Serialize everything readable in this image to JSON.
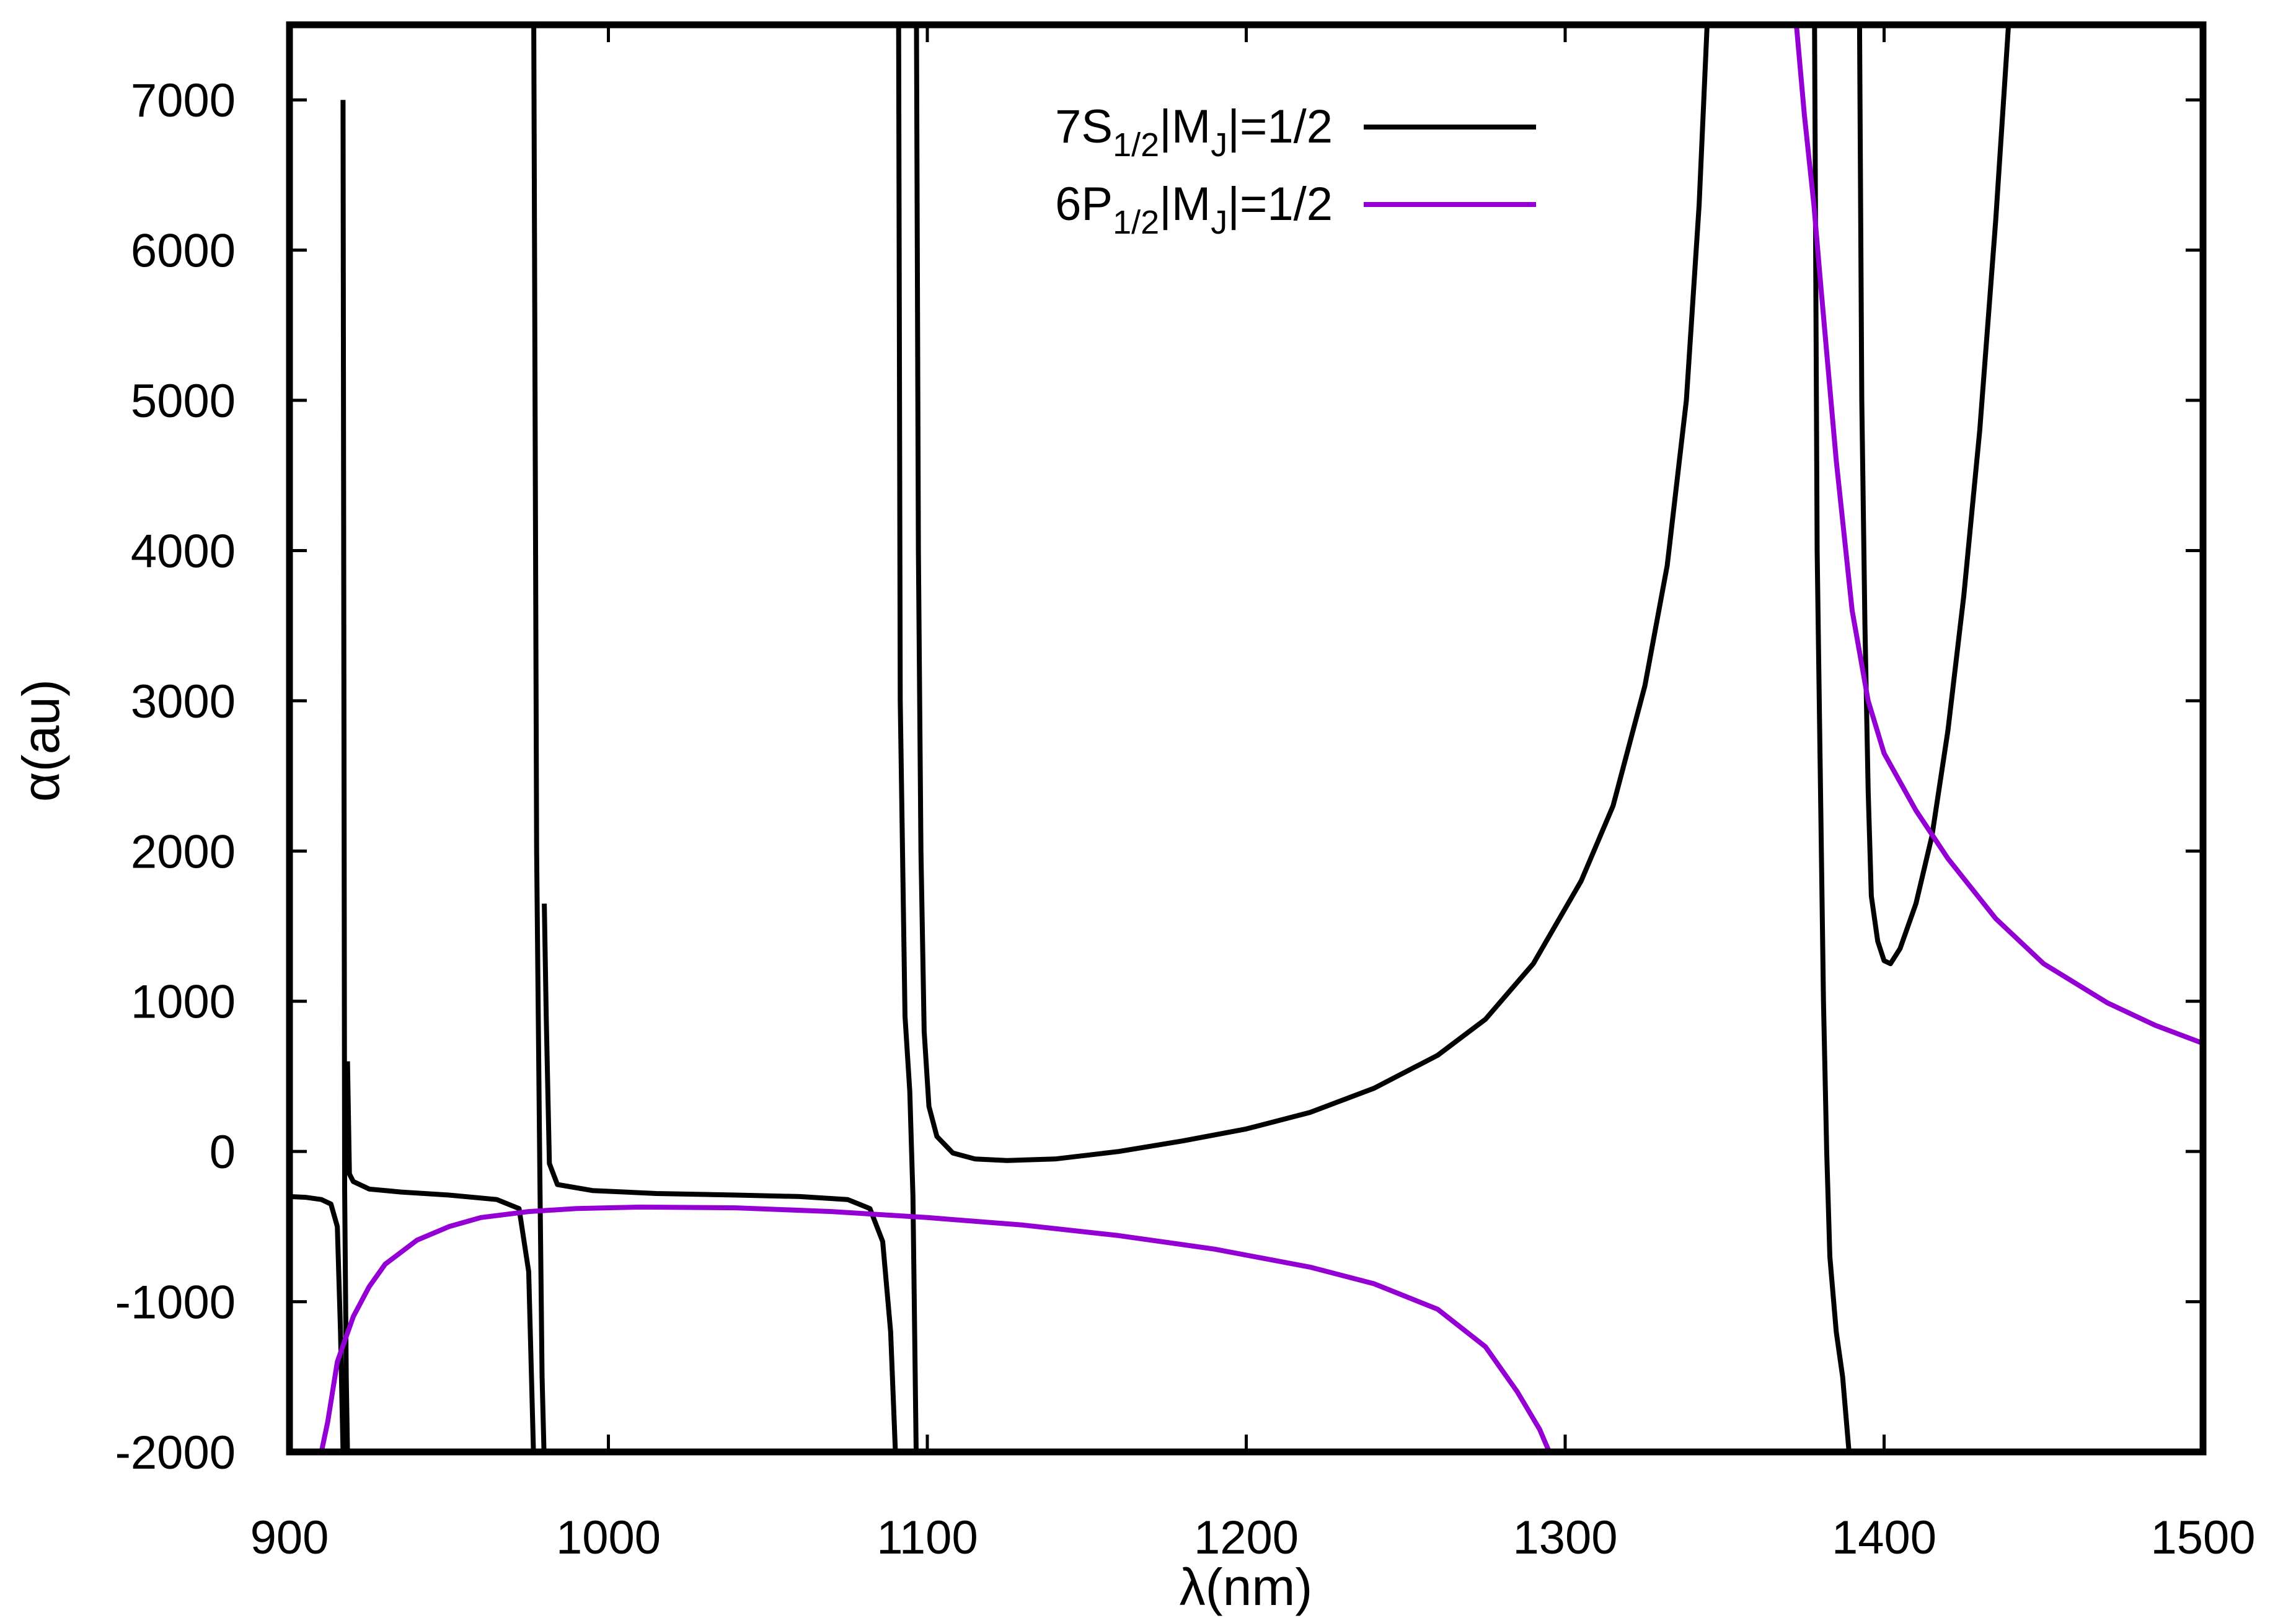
{
  "chart_data": {
    "type": "line",
    "title": "",
    "xlabel": "λ(nm)",
    "ylabel": "α(au)",
    "xlim": [
      900,
      1500
    ],
    "ylim": [
      -2000,
      7500
    ],
    "xticks": [
      900,
      1000,
      1100,
      1200,
      1300,
      1400,
      1500
    ],
    "yticks": [
      -2000,
      -1000,
      0,
      1000,
      2000,
      3000,
      4000,
      5000,
      6000,
      7000
    ],
    "grid": false,
    "legend_position": "top-center",
    "series": [
      {
        "name": "7S1/2|MJ|=1/2",
        "legend": {
          "prefix": "7S",
          "sub1": "1/2",
          "mid": "|M",
          "sub2": "J",
          "suffix": "|=1/2"
        },
        "color": "#000000",
        "segments": [
          [
            [
              900,
              -300
            ],
            [
              905,
              -305
            ],
            [
              910,
              -320
            ],
            [
              913,
              -350
            ],
            [
              915,
              -500
            ],
            [
              916,
              -1200
            ],
            [
              916.8,
              -2000
            ]
          ],
          [
            [
              916.8,
              7000
            ],
            [
              917.3,
              -250
            ],
            [
              917.8,
              -1500
            ],
            [
              918.2,
              -2000
            ]
          ],
          [
            [
              918.2,
              600
            ],
            [
              918.8,
              -150
            ],
            [
              920,
              -200
            ],
            [
              925,
              -250
            ],
            [
              935,
              -270
            ],
            [
              950,
              -290
            ],
            [
              965,
              -320
            ],
            [
              972,
              -380
            ],
            [
              975,
              -800
            ],
            [
              976.5,
              -2000
            ]
          ],
          [
            [
              976.6,
              7500
            ],
            [
              977.5,
              2000
            ],
            [
              978.5,
              -150
            ],
            [
              979.2,
              -1500
            ],
            [
              979.8,
              -2000
            ]
          ],
          [
            [
              979.9,
              1650
            ],
            [
              980.5,
              900
            ],
            [
              981.5,
              -80
            ],
            [
              984,
              -220
            ],
            [
              995,
              -260
            ],
            [
              1015,
              -280
            ],
            [
              1040,
              -290
            ],
            [
              1060,
              -300
            ],
            [
              1075,
              -320
            ],
            [
              1082,
              -380
            ],
            [
              1086,
              -600
            ],
            [
              1088.5,
              -1200
            ],
            [
              1090,
              -2000
            ]
          ],
          [
            [
              1091,
              7500
            ],
            [
              1091.5,
              3000
            ],
            [
              1093,
              900
            ],
            [
              1094.5,
              400
            ],
            [
              1095.5,
              -300
            ],
            [
              1096.5,
              -2000
            ]
          ],
          [
            [
              1096.6,
              7500
            ],
            [
              1097.2,
              4000
            ],
            [
              1098,
              2000
            ],
            [
              1099,
              800
            ],
            [
              1100.5,
              300
            ],
            [
              1103,
              100
            ],
            [
              1108,
              -10
            ],
            [
              1115,
              -50
            ],
            [
              1125,
              -60
            ],
            [
              1140,
              -50
            ],
            [
              1160,
              0
            ],
            [
              1180,
              70
            ],
            [
              1200,
              150
            ],
            [
              1220,
              260
            ],
            [
              1240,
              420
            ],
            [
              1260,
              640
            ],
            [
              1275,
              880
            ],
            [
              1290,
              1250
            ],
            [
              1305,
              1800
            ],
            [
              1315,
              2300
            ],
            [
              1325,
              3100
            ],
            [
              1332,
              3900
            ],
            [
              1338,
              5000
            ],
            [
              1342,
              6300
            ],
            [
              1344.5,
              7500
            ]
          ],
          [
            [
              1378.2,
              7500
            ],
            [
              1379,
              4000
            ],
            [
              1380,
              2500
            ],
            [
              1381,
              1000
            ],
            [
              1382,
              0
            ],
            [
              1383,
              -700
            ],
            [
              1385,
              -1200
            ],
            [
              1387,
              -1500
            ],
            [
              1389,
              -2000
            ]
          ],
          [
            [
              1392.3,
              7500
            ],
            [
              1393,
              5000
            ],
            [
              1394,
              3500
            ],
            [
              1395,
              2400
            ],
            [
              1396,
              1700
            ],
            [
              1398,
              1400
            ],
            [
              1400,
              1270
            ],
            [
              1402,
              1250
            ],
            [
              1405,
              1350
            ],
            [
              1410,
              1650
            ],
            [
              1415,
              2100
            ],
            [
              1420,
              2800
            ],
            [
              1425,
              3700
            ],
            [
              1430,
              4800
            ],
            [
              1435,
              6200
            ],
            [
              1439,
              7500
            ]
          ]
        ]
      },
      {
        "name": "6P1/2|MJ|=1/2",
        "legend": {
          "prefix": "6P",
          "sub1": "1/2",
          "mid": "|M",
          "sub2": "J",
          "suffix": "|=1/2"
        },
        "color": "#9400D3",
        "segments": [
          [
            [
              910,
              -2000
            ],
            [
              912,
              -1800
            ],
            [
              915,
              -1400
            ],
            [
              920,
              -1100
            ],
            [
              925,
              -900
            ],
            [
              930,
              -750
            ],
            [
              940,
              -590
            ],
            [
              950,
              -500
            ],
            [
              960,
              -440
            ],
            [
              975,
              -400
            ],
            [
              990,
              -380
            ],
            [
              1010,
              -370
            ],
            [
              1040,
              -375
            ],
            [
              1070,
              -400
            ],
            [
              1100,
              -440
            ],
            [
              1130,
              -490
            ],
            [
              1160,
              -560
            ],
            [
              1190,
              -650
            ],
            [
              1220,
              -770
            ],
            [
              1240,
              -880
            ],
            [
              1260,
              -1050
            ],
            [
              1275,
              -1300
            ],
            [
              1285,
              -1600
            ],
            [
              1292,
              -1850
            ],
            [
              1295,
              -2000
            ]
          ],
          [
            [
              1372.5,
              7500
            ],
            [
              1375,
              6900
            ],
            [
              1378,
              6300
            ],
            [
              1380,
              5800
            ],
            [
              1385,
              4600
            ],
            [
              1390,
              3600
            ],
            [
              1395,
              3000
            ],
            [
              1400,
              2650
            ],
            [
              1410,
              2270
            ],
            [
              1420,
              1950
            ],
            [
              1435,
              1550
            ],
            [
              1450,
              1250
            ],
            [
              1470,
              990
            ],
            [
              1485,
              840
            ],
            [
              1500,
              720
            ]
          ]
        ]
      }
    ]
  }
}
